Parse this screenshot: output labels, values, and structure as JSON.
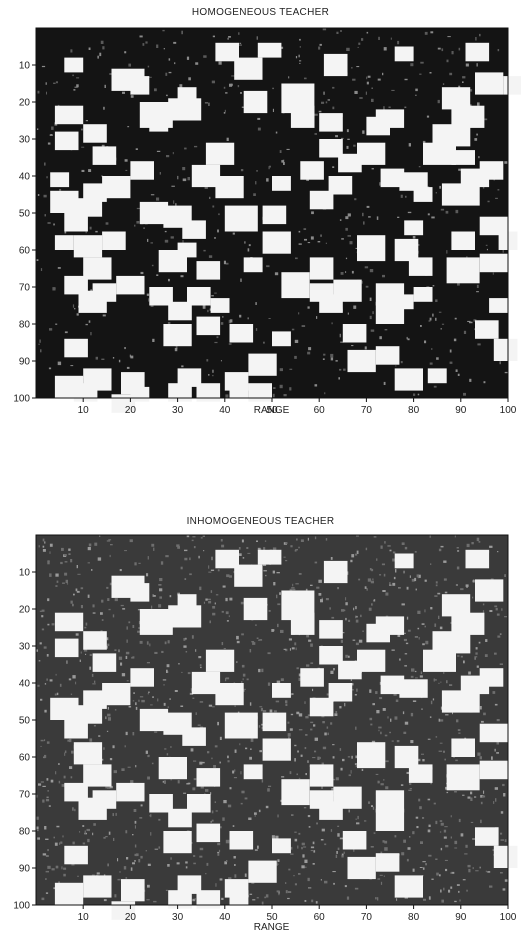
{
  "chart_data": [
    {
      "type": "heatmap",
      "title": "HOMOGENEOUS TEACHER",
      "xlabel": "RANGE",
      "ylabel": "",
      "xlim": [
        0,
        100
      ],
      "ylim": [
        100,
        0
      ],
      "xticks": [
        10,
        20,
        30,
        40,
        50,
        60,
        70,
        80,
        90,
        100
      ],
      "yticks": [
        10,
        20,
        30,
        40,
        50,
        60,
        70,
        80,
        90,
        100
      ],
      "colormap": "grayscale (black = low, white = high)",
      "background": "#141414",
      "grid": false,
      "patches": [
        [
          16,
          11,
          7,
          6
        ],
        [
          20,
          13,
          4,
          5
        ],
        [
          22,
          20,
          7,
          7
        ],
        [
          28,
          19,
          7,
          6
        ],
        [
          38,
          4,
          5,
          5
        ],
        [
          42,
          8,
          6,
          6
        ],
        [
          47,
          4,
          5,
          4
        ],
        [
          44,
          17,
          5,
          6
        ],
        [
          52,
          15,
          7,
          8
        ],
        [
          61,
          7,
          5,
          6
        ],
        [
          76,
          5,
          4,
          4
        ],
        [
          86,
          16,
          6,
          6
        ],
        [
          72,
          22,
          6,
          5
        ],
        [
          91,
          4,
          5,
          5
        ],
        [
          93,
          12,
          6,
          6
        ],
        [
          99,
          13,
          6,
          5
        ],
        [
          82,
          31,
          7,
          6
        ],
        [
          84,
          26,
          8,
          6
        ],
        [
          88,
          21,
          7,
          6
        ],
        [
          86,
          42,
          8,
          6
        ],
        [
          90,
          38,
          6,
          5
        ],
        [
          68,
          31,
          6,
          6
        ],
        [
          73,
          38,
          5,
          5
        ],
        [
          77,
          39,
          6,
          5
        ],
        [
          80,
          43,
          4,
          4
        ],
        [
          88,
          33,
          5,
          4
        ],
        [
          94,
          36,
          5,
          5
        ],
        [
          88,
          55,
          5,
          5
        ],
        [
          94,
          61,
          6,
          5
        ],
        [
          68,
          56,
          6,
          7
        ],
        [
          76,
          57,
          5,
          6
        ],
        [
          87,
          62,
          7,
          7
        ],
        [
          72,
          69,
          6,
          6
        ],
        [
          79,
          62,
          5,
          5
        ],
        [
          78,
          52,
          4,
          4
        ],
        [
          94,
          51,
          6,
          5
        ],
        [
          98,
          55,
          4,
          5
        ],
        [
          96,
          73,
          4,
          4
        ],
        [
          93,
          79,
          5,
          5
        ],
        [
          97,
          84,
          5,
          6
        ],
        [
          72,
          86,
          5,
          5
        ],
        [
          76,
          92,
          6,
          6
        ],
        [
          83,
          92,
          4,
          4
        ],
        [
          66,
          87,
          6,
          6
        ],
        [
          65,
          80,
          5,
          5
        ],
        [
          50,
          82,
          4,
          4
        ],
        [
          52,
          66,
          6,
          7
        ],
        [
          58,
          62,
          5,
          6
        ],
        [
          48,
          55,
          6,
          6
        ],
        [
          44,
          62,
          4,
          4
        ],
        [
          48,
          48,
          5,
          5
        ],
        [
          58,
          44,
          5,
          5
        ],
        [
          62,
          40,
          5,
          5
        ],
        [
          64,
          34,
          5,
          5
        ],
        [
          70,
          24,
          5,
          5
        ],
        [
          60,
          23,
          5,
          5
        ],
        [
          54,
          21,
          5,
          6
        ],
        [
          60,
          72,
          5,
          5
        ],
        [
          58,
          69,
          5,
          5
        ],
        [
          63,
          68,
          6,
          6
        ],
        [
          72,
          74,
          6,
          6
        ],
        [
          76,
          72,
          4,
          4
        ],
        [
          80,
          70,
          4,
          4
        ],
        [
          38,
          40,
          6,
          6
        ],
        [
          33,
          37,
          6,
          6
        ],
        [
          36,
          31,
          6,
          6
        ],
        [
          40,
          48,
          7,
          7
        ],
        [
          27,
          48,
          6,
          6
        ],
        [
          31,
          52,
          5,
          5
        ],
        [
          22,
          47,
          6,
          6
        ],
        [
          26,
          60,
          6,
          6
        ],
        [
          20,
          36,
          5,
          5
        ],
        [
          10,
          42,
          5,
          5
        ],
        [
          14,
          40,
          6,
          6
        ],
        [
          8,
          46,
          6,
          5
        ],
        [
          3,
          44,
          6,
          6
        ],
        [
          4,
          28,
          5,
          5
        ],
        [
          4,
          21,
          6,
          5
        ],
        [
          10,
          26,
          5,
          5
        ],
        [
          3,
          39,
          4,
          4
        ],
        [
          6,
          50,
          5,
          5
        ],
        [
          8,
          56,
          6,
          6
        ],
        [
          10,
          62,
          6,
          6
        ],
        [
          4,
          56,
          4,
          4
        ],
        [
          6,
          67,
          5,
          5
        ],
        [
          9,
          71,
          6,
          6
        ],
        [
          12,
          69,
          5,
          5
        ],
        [
          17,
          67,
          6,
          5
        ],
        [
          24,
          70,
          5,
          5
        ],
        [
          32,
          70,
          5,
          5
        ],
        [
          37,
          73,
          4,
          4
        ],
        [
          28,
          74,
          5,
          5
        ],
        [
          14,
          55,
          5,
          5
        ],
        [
          27,
          80,
          6,
          6
        ],
        [
          34,
          78,
          5,
          5
        ],
        [
          41,
          80,
          5,
          5
        ],
        [
          45,
          88,
          6,
          6
        ],
        [
          40,
          93,
          5,
          5
        ],
        [
          30,
          92,
          5,
          5
        ],
        [
          18,
          93,
          5,
          6
        ],
        [
          16,
          99,
          5,
          5
        ],
        [
          20,
          97,
          4,
          4
        ],
        [
          6,
          84,
          5,
          5
        ],
        [
          10,
          92,
          6,
          6
        ],
        [
          4,
          94,
          6,
          6
        ],
        [
          8,
          96,
          5,
          5
        ],
        [
          28,
          96,
          5,
          5
        ],
        [
          34,
          96,
          5,
          5
        ],
        [
          41,
          96,
          4,
          4
        ],
        [
          45,
          96,
          5,
          5
        ],
        [
          12,
          32,
          5,
          5
        ],
        [
          24,
          24,
          4,
          4
        ],
        [
          30,
          16,
          4,
          4
        ],
        [
          6,
          8,
          4,
          4
        ],
        [
          56,
          36,
          5,
          5
        ],
        [
          60,
          30,
          5,
          5
        ],
        [
          34,
          63,
          5,
          5
        ],
        [
          30,
          58,
          4,
          4
        ],
        [
          50,
          40,
          4,
          4
        ]
      ]
    },
    {
      "type": "heatmap",
      "title": "INHOMOGENEOUS TEACHER",
      "xlabel": "RANGE",
      "ylabel": "",
      "xlim": [
        0,
        100
      ],
      "ylim": [
        100,
        0
      ],
      "xticks": [
        10,
        20,
        30,
        40,
        50,
        60,
        70,
        80,
        90,
        100
      ],
      "yticks": [
        10,
        20,
        30,
        40,
        50,
        60,
        70,
        80,
        90,
        100
      ],
      "colormap": "grayscale (black = low, white = high)",
      "background": "#3a3a3a",
      "grid": false,
      "patches": [
        [
          16,
          11,
          7,
          6
        ],
        [
          20,
          13,
          4,
          5
        ],
        [
          22,
          20,
          7,
          7
        ],
        [
          28,
          19,
          7,
          6
        ],
        [
          38,
          4,
          5,
          5
        ],
        [
          42,
          8,
          6,
          6
        ],
        [
          47,
          4,
          5,
          4
        ],
        [
          44,
          17,
          5,
          6
        ],
        [
          52,
          15,
          7,
          8
        ],
        [
          61,
          7,
          5,
          6
        ],
        [
          76,
          5,
          4,
          4
        ],
        [
          86,
          16,
          6,
          6
        ],
        [
          72,
          22,
          6,
          5
        ],
        [
          91,
          4,
          5,
          5
        ],
        [
          93,
          12,
          6,
          6
        ],
        [
          82,
          31,
          7,
          6
        ],
        [
          84,
          26,
          8,
          6
        ],
        [
          88,
          21,
          7,
          6
        ],
        [
          86,
          42,
          8,
          6
        ],
        [
          90,
          38,
          6,
          5
        ],
        [
          68,
          31,
          6,
          6
        ],
        [
          73,
          38,
          5,
          5
        ],
        [
          77,
          39,
          6,
          5
        ],
        [
          94,
          36,
          5,
          5
        ],
        [
          88,
          55,
          5,
          5
        ],
        [
          94,
          61,
          6,
          5
        ],
        [
          68,
          56,
          6,
          7
        ],
        [
          76,
          57,
          5,
          6
        ],
        [
          87,
          62,
          7,
          7
        ],
        [
          72,
          69,
          6,
          6
        ],
        [
          79,
          62,
          5,
          5
        ],
        [
          94,
          51,
          6,
          5
        ],
        [
          93,
          79,
          5,
          5
        ],
        [
          97,
          84,
          5,
          6
        ],
        [
          72,
          86,
          5,
          5
        ],
        [
          76,
          92,
          6,
          6
        ],
        [
          66,
          87,
          6,
          6
        ],
        [
          65,
          80,
          5,
          5
        ],
        [
          50,
          82,
          4,
          4
        ],
        [
          52,
          66,
          6,
          7
        ],
        [
          58,
          62,
          5,
          6
        ],
        [
          48,
          55,
          6,
          6
        ],
        [
          44,
          62,
          4,
          4
        ],
        [
          48,
          48,
          5,
          5
        ],
        [
          58,
          44,
          5,
          5
        ],
        [
          62,
          40,
          5,
          5
        ],
        [
          64,
          34,
          5,
          5
        ],
        [
          70,
          24,
          5,
          5
        ],
        [
          60,
          23,
          5,
          5
        ],
        [
          54,
          21,
          5,
          6
        ],
        [
          60,
          72,
          5,
          5
        ],
        [
          58,
          69,
          5,
          5
        ],
        [
          63,
          68,
          6,
          6
        ],
        [
          72,
          74,
          6,
          6
        ],
        [
          38,
          40,
          6,
          6
        ],
        [
          33,
          37,
          6,
          6
        ],
        [
          36,
          31,
          6,
          6
        ],
        [
          40,
          48,
          7,
          7
        ],
        [
          27,
          48,
          6,
          6
        ],
        [
          31,
          52,
          5,
          5
        ],
        [
          22,
          47,
          6,
          6
        ],
        [
          26,
          60,
          6,
          6
        ],
        [
          20,
          36,
          5,
          5
        ],
        [
          10,
          42,
          5,
          5
        ],
        [
          14,
          40,
          6,
          6
        ],
        [
          8,
          46,
          6,
          5
        ],
        [
          3,
          44,
          6,
          6
        ],
        [
          4,
          28,
          5,
          5
        ],
        [
          4,
          21,
          6,
          5
        ],
        [
          10,
          26,
          5,
          5
        ],
        [
          6,
          50,
          5,
          5
        ],
        [
          8,
          56,
          6,
          6
        ],
        [
          10,
          62,
          6,
          6
        ],
        [
          6,
          67,
          5,
          5
        ],
        [
          9,
          71,
          6,
          6
        ],
        [
          12,
          69,
          5,
          5
        ],
        [
          17,
          67,
          6,
          5
        ],
        [
          24,
          70,
          5,
          5
        ],
        [
          32,
          70,
          5,
          5
        ],
        [
          28,
          74,
          5,
          5
        ],
        [
          27,
          80,
          6,
          6
        ],
        [
          34,
          78,
          5,
          5
        ],
        [
          41,
          80,
          5,
          5
        ],
        [
          45,
          88,
          6,
          6
        ],
        [
          40,
          93,
          5,
          5
        ],
        [
          30,
          92,
          5,
          5
        ],
        [
          18,
          93,
          5,
          6
        ],
        [
          16,
          99,
          5,
          5
        ],
        [
          6,
          84,
          5,
          5
        ],
        [
          10,
          92,
          6,
          6
        ],
        [
          4,
          94,
          6,
          6
        ],
        [
          28,
          96,
          5,
          5
        ],
        [
          34,
          96,
          5,
          5
        ],
        [
          41,
          96,
          4,
          4
        ],
        [
          12,
          32,
          5,
          5
        ],
        [
          30,
          16,
          4,
          4
        ],
        [
          56,
          36,
          5,
          5
        ],
        [
          60,
          30,
          5,
          5
        ],
        [
          34,
          63,
          5,
          5
        ],
        [
          50,
          40,
          4,
          4
        ]
      ]
    }
  ]
}
